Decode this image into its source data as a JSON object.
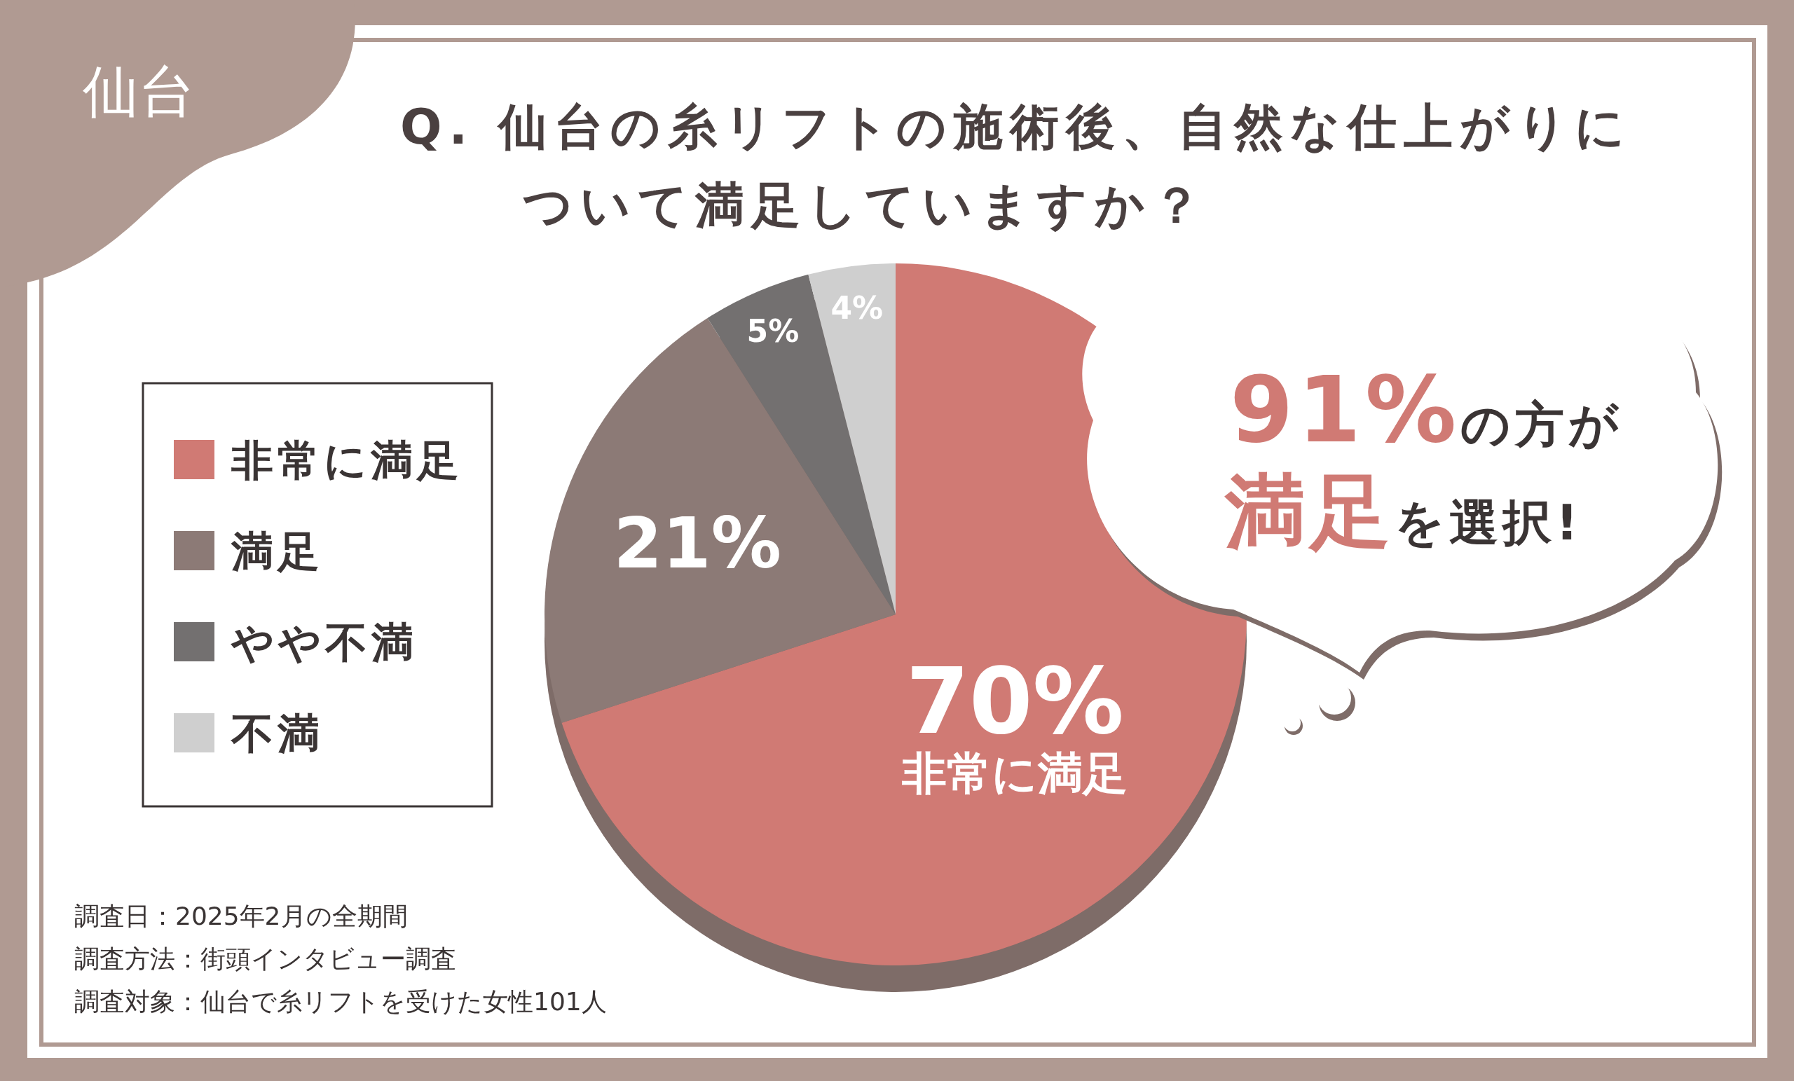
{
  "chart_data": {
    "type": "pie",
    "title": "Q. 仙台の糸リフトの施術後、自然な仕上がりについて満足していますか？",
    "categories": [
      "非常に満足",
      "満足",
      "やや不満",
      "不満"
    ],
    "values": [
      70,
      21,
      5,
      4
    ],
    "colors": [
      "#d07a74",
      "#8c7a76",
      "#737070",
      "#cfcfcf"
    ],
    "value_labels": [
      "70%",
      "21%",
      "5%",
      "4%"
    ],
    "legend": "left",
    "annotations": [
      "仙台",
      "91%の方が満足を選択!",
      "調査日：2025年2月の全期間",
      "調査方法：街頭インタビュー調査",
      "調査対象：仙台で糸リフトを受けた女性101人"
    ]
  }
}
